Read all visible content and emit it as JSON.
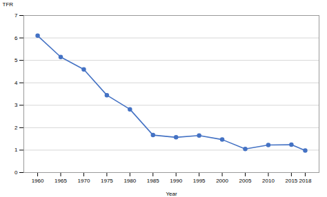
{
  "chart_data": {
    "type": "line",
    "x": [
      1960,
      1965,
      1970,
      1975,
      1980,
      1985,
      1990,
      1995,
      2000,
      2005,
      2010,
      2015,
      2018
    ],
    "values": [
      6.1,
      5.15,
      4.6,
      3.45,
      2.82,
      1.67,
      1.57,
      1.65,
      1.47,
      1.05,
      1.23,
      1.24,
      0.98
    ],
    "color": "#4472C4",
    "marker": "circle",
    "xlabel": "Year",
    "ylabel": "TFR",
    "xlim": [
      1957,
      2021
    ],
    "ylim": [
      0,
      7
    ],
    "xticks": [
      1960,
      1965,
      1970,
      1975,
      1980,
      1985,
      1990,
      1995,
      2000,
      2005,
      2010,
      2015,
      2018
    ],
    "yticks": [
      0,
      1,
      2,
      3,
      4,
      5,
      6,
      7
    ],
    "grid": true
  }
}
